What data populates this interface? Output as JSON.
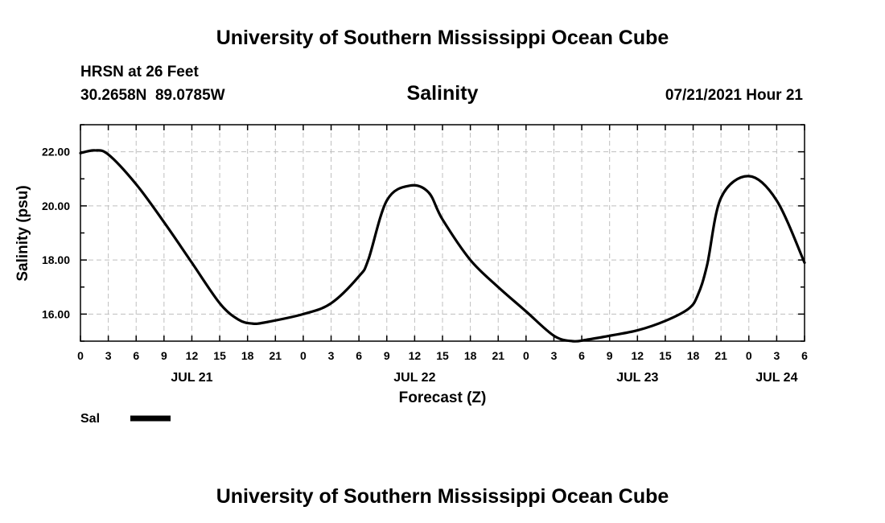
{
  "header": {
    "title": "University of Southern Mississippi Ocean Cube",
    "station": "HRSN at 26 Feet",
    "coords": "30.2658N  89.0785W",
    "variable": "Salinity",
    "datetime": "07/21/2021 Hour 21"
  },
  "footer": {
    "title": "University of Southern Mississippi Ocean Cube"
  },
  "legend": {
    "label": "Sal"
  },
  "colors": {
    "line": "#000000",
    "grid": "#bfbfbf",
    "axis": "#000000"
  },
  "chart_data": {
    "type": "line",
    "title": "Salinity",
    "xlabel": "Forecast (Z)",
    "ylabel": "Salinity (psu)",
    "xlim": [
      0,
      78
    ],
    "ylim": [
      15,
      23
    ],
    "x_tick_hours": [
      0,
      3,
      6,
      9,
      12,
      15,
      18,
      21,
      24,
      27,
      30,
      33,
      36,
      39,
      42,
      45,
      48,
      51,
      54,
      57,
      60,
      63,
      66,
      69,
      72,
      75,
      78
    ],
    "x_tick_labels": [
      "0",
      "3",
      "6",
      "9",
      "12",
      "15",
      "18",
      "21",
      "0",
      "3",
      "6",
      "9",
      "12",
      "15",
      "18",
      "21",
      "0",
      "3",
      "6",
      "9",
      "12",
      "15",
      "18",
      "21",
      "0",
      "3",
      "6"
    ],
    "date_labels": [
      {
        "label": "JUL 21",
        "hour": 12
      },
      {
        "label": "JUL 22",
        "hour": 36
      },
      {
        "label": "JUL 23",
        "hour": 60
      },
      {
        "label": "JUL 24",
        "hour": 75
      }
    ],
    "y_ticks": [
      16,
      18,
      20,
      22
    ],
    "y_tick_labels": [
      "16.00",
      "18.00",
      "20.00",
      "22.00"
    ],
    "series": [
      {
        "name": "Sal",
        "x": [
          0,
          1.5,
          3,
          6,
          9,
          12,
          15,
          17,
          18.5,
          20,
          24,
          27,
          30,
          31,
          33,
          35.5,
          37.5,
          39,
          42,
          45,
          48,
          51,
          53,
          54.5,
          57,
          60,
          63,
          65.5,
          66.5,
          67.5,
          69,
          72,
          75,
          78
        ],
        "values": [
          21.95,
          22.05,
          21.9,
          20.8,
          19.4,
          17.9,
          16.4,
          15.8,
          15.65,
          15.7,
          16.0,
          16.4,
          17.4,
          18.0,
          20.2,
          20.75,
          20.5,
          19.5,
          18.0,
          17.0,
          16.1,
          15.2,
          15.0,
          15.05,
          15.2,
          15.4,
          15.75,
          16.2,
          16.7,
          17.8,
          20.3,
          21.1,
          20.2,
          17.9
        ]
      }
    ]
  }
}
